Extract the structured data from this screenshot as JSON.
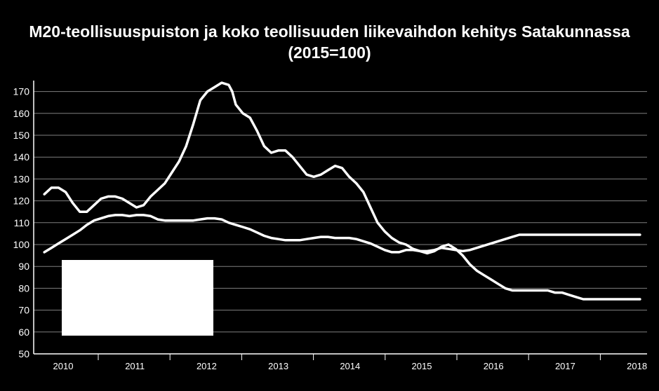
{
  "chart_data": {
    "type": "line",
    "title": "M20-teollisuuspuiston ja koko teollisuuden liikevaihdon kehitys Satakunnassa",
    "subtitle": "(2015=100)",
    "xlabel": "",
    "ylabel": "",
    "ylim": [
      50,
      175
    ],
    "yticks": [
      "50",
      "60",
      "70",
      "80",
      "90",
      "100",
      "110",
      "120",
      "130",
      "140",
      "150",
      "160",
      "170"
    ],
    "xticks": [
      "2010",
      "2011",
      "2012",
      "2013",
      "2014",
      "2015",
      "2016",
      "2017",
      "2018"
    ],
    "grid": true,
    "legend": "covered",
    "colors": {
      "background": "#000000",
      "lines": "#ffffff",
      "grid": "#7f7f7f",
      "legend_box": "#ffffff"
    },
    "series": [
      {
        "x": [
          2009.7,
          2009.8,
          2009.9,
          2010.0,
          2010.1,
          2010.2,
          2010.3,
          2010.4,
          2010.5,
          2010.6,
          2010.7,
          2010.8,
          2010.9,
          2011.0,
          2011.1,
          2011.2,
          2011.3,
          2011.4,
          2011.5,
          2011.6,
          2011.7,
          2011.8,
          2011.9,
          2012.0,
          2012.1,
          2012.2,
          2012.3,
          2012.35,
          2012.4,
          2012.5,
          2012.6,
          2012.7,
          2012.8,
          2012.9,
          2013.0,
          2013.1,
          2013.2,
          2013.3,
          2013.4,
          2013.5,
          2013.6,
          2013.7,
          2013.8,
          2013.9,
          2014.0,
          2014.1,
          2014.2,
          2014.3,
          2014.4,
          2014.5,
          2014.6,
          2014.7,
          2014.8,
          2014.9,
          2015.0,
          2015.1,
          2015.2,
          2015.3,
          2015.4,
          2015.5,
          2015.6,
          2015.7,
          2015.8,
          2015.9,
          2016.0,
          2016.1,
          2016.2,
          2016.3,
          2016.4,
          2016.5,
          2016.6,
          2016.7,
          2016.8,
          2016.9,
          2017.0,
          2017.1,
          2017.2,
          2017.3,
          2017.4,
          2017.5,
          2017.6,
          2017.7,
          2017.8,
          2017.9,
          2018.0,
          2018.1
        ],
        "values": [
          123,
          126,
          126,
          124,
          119,
          115,
          115,
          118,
          121,
          122,
          122,
          121,
          119,
          117,
          118,
          122,
          125,
          128,
          133,
          138,
          145,
          155,
          166,
          170,
          172,
          174,
          173,
          170,
          164,
          160,
          158,
          152,
          145,
          142,
          143,
          143,
          140,
          136,
          132,
          131,
          132,
          134,
          136,
          135,
          131,
          128,
          124,
          117,
          110,
          106,
          103,
          101,
          100,
          98,
          97,
          96,
          97,
          99,
          100,
          98,
          95,
          91,
          88,
          86,
          84,
          82,
          80,
          79,
          79,
          79,
          79,
          79,
          79,
          78,
          78,
          77,
          76,
          75,
          75,
          75,
          75,
          75,
          75,
          75,
          75,
          75
        ]
      },
      {
        "x": [
          2009.7,
          2009.8,
          2009.9,
          2010.0,
          2010.1,
          2010.2,
          2010.3,
          2010.4,
          2010.5,
          2010.6,
          2010.7,
          2010.8,
          2010.9,
          2011.0,
          2011.1,
          2011.2,
          2011.3,
          2011.4,
          2011.5,
          2011.6,
          2011.7,
          2011.8,
          2011.9,
          2012.0,
          2012.1,
          2012.2,
          2012.3,
          2012.4,
          2012.5,
          2012.6,
          2012.7,
          2012.8,
          2012.9,
          2013.0,
          2013.1,
          2013.2,
          2013.3,
          2013.4,
          2013.5,
          2013.6,
          2013.7,
          2013.8,
          2013.9,
          2014.0,
          2014.1,
          2014.2,
          2014.3,
          2014.4,
          2014.5,
          2014.6,
          2014.7,
          2014.8,
          2014.9,
          2015.0,
          2015.1,
          2015.2,
          2015.3,
          2015.4,
          2015.5,
          2015.6,
          2015.7,
          2015.8,
          2015.9,
          2016.0,
          2016.1,
          2016.2,
          2016.3,
          2016.4,
          2016.5,
          2016.6,
          2016.7,
          2016.8,
          2016.9,
          2017.0,
          2017.1,
          2017.2,
          2017.3,
          2017.4,
          2017.5,
          2017.6,
          2017.7,
          2017.8,
          2017.9,
          2018.0,
          2018.1
        ],
        "values": [
          96.5,
          98.5,
          100.5,
          102.5,
          104.5,
          106.5,
          109,
          111,
          112,
          113,
          113.5,
          113.5,
          113,
          113.5,
          113.5,
          113,
          111.5,
          111,
          111,
          111,
          111,
          111,
          111.5,
          112,
          112,
          111.5,
          110,
          109,
          108,
          107,
          105.5,
          104,
          103,
          102.5,
          102,
          102,
          102,
          102.5,
          103,
          103.5,
          103.5,
          103,
          103,
          103,
          102.5,
          101.5,
          100.5,
          99,
          97.5,
          96.5,
          96.5,
          97.5,
          97.5,
          97,
          97,
          97.5,
          98.5,
          98,
          97.5,
          97,
          97.5,
          98.5,
          99.5,
          100.5,
          101.5,
          102.5,
          103.5,
          104.5,
          104.5,
          104.5,
          104.5,
          104.5,
          104.5,
          104.5,
          104.5,
          104.5,
          104.5,
          104.5,
          104.5,
          104.5,
          104.5,
          104.5,
          104.5,
          104.5,
          104.5
        ]
      }
    ]
  }
}
